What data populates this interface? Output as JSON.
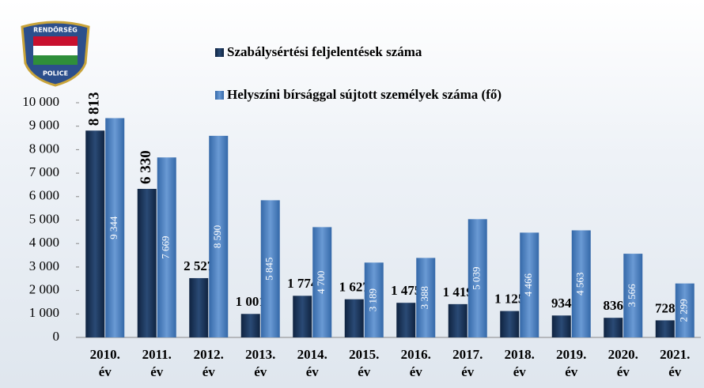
{
  "logo": {
    "top": "RENDŐRSÉG",
    "bottom": "POLICE"
  },
  "chart_data": {
    "type": "bar",
    "categories": [
      "2010. év",
      "2011. év",
      "2012. év",
      "2013. év",
      "2014. év",
      "2015. év",
      "2016. év",
      "2017. év",
      "2018. év",
      "2019. év",
      "2020. év",
      "2021. év"
    ],
    "series": [
      {
        "name": "Szabálysértési feljelentések száma",
        "color": "#1a3456",
        "values": [
          8813,
          6330,
          2527,
          1001,
          1774,
          1627,
          1475,
          1419,
          1125,
          934,
          836,
          728
        ],
        "value_labels": [
          "8 813",
          "6 330",
          "2 527",
          "1 001",
          "1 774",
          "1 627",
          "1 475",
          "1 419",
          "1 125",
          "934",
          "836",
          "728"
        ]
      },
      {
        "name": "Helyszíni bírsággal sújtott személyek száma (fő)",
        "color": "#4a7fc0",
        "values": [
          9344,
          7669,
          8590,
          5845,
          4700,
          3189,
          3388,
          5039,
          4466,
          4563,
          3566,
          2299
        ],
        "value_labels": [
          "9 344",
          "7 669",
          "8 590",
          "5 845",
          "4 700",
          "3 189",
          "3 388",
          "5 039",
          "4 466",
          "4 563",
          "3 566",
          "2 299"
        ]
      }
    ],
    "ylim": [
      0,
      10000
    ],
    "yticks": [
      0,
      {
        "value": 1000,
        "label": "1 000"
      },
      {
        "value": 2000,
        "label": "2 000"
      },
      {
        "value": 3000,
        "label": "3 000"
      },
      {
        "value": 4000,
        "label": "4 000"
      },
      {
        "value": 5000,
        "label": "5 000"
      },
      {
        "value": 6000,
        "label": "6 000"
      },
      {
        "value": 7000,
        "label": "7 000"
      },
      {
        "value": 8000,
        "label": "8 000"
      },
      {
        "value": 9000,
        "label": "9 000"
      },
      {
        "value": 10000,
        "label": "10 000"
      }
    ]
  }
}
